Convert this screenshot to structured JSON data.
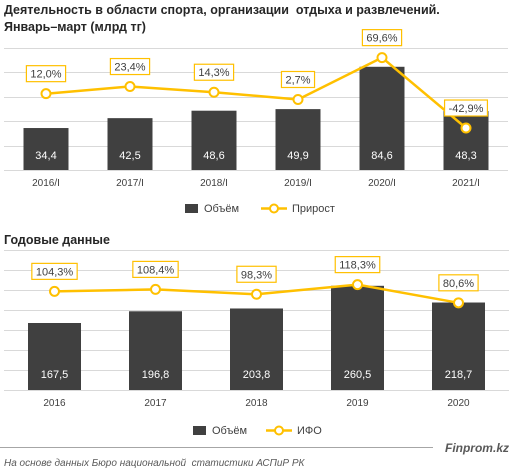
{
  "title": "Деятельность в области спорта, организации  отдыха и развлечений.",
  "colors": {
    "grid": "#D9D9D9"
  },
  "chart_data": [
    {
      "type": "bar",
      "title": "Январь–март (млрд тг)",
      "categories": [
        "2016/I",
        "2017/I",
        "2018/I",
        "2019/I",
        "2020/I",
        "2021/I"
      ],
      "series": [
        {
          "name": "Объём",
          "type": "bar",
          "values": [
            34.4,
            42.5,
            48.6,
            49.9,
            84.6,
            48.3
          ],
          "data_labels": [
            "34,4",
            "42,5",
            "48,6",
            "49,9",
            "84,6",
            "48,3"
          ],
          "color": "#404040"
        },
        {
          "name": "Прирост",
          "type": "line",
          "axis": "secondary",
          "values": [
            12.0,
            23.4,
            14.3,
            2.7,
            69.6,
            -42.9
          ],
          "data_labels": [
            "12,0%",
            "23,4%",
            "14,3%",
            "2,7%",
            "69,6%",
            "-42,9%"
          ],
          "color": "#FFC000"
        }
      ],
      "ylim": [
        0,
        100
      ],
      "y2lim": [
        -110,
        85
      ],
      "grid": true,
      "legend": "bottom"
    },
    {
      "type": "bar",
      "title": "Годовые данные",
      "categories": [
        "2016",
        "2017",
        "2018",
        "2019",
        "2020"
      ],
      "series": [
        {
          "name": "Объём",
          "type": "bar",
          "values": [
            167.5,
            196.8,
            203.8,
            260.5,
            218.7
          ],
          "data_labels": [
            "167,5",
            "196,8",
            "203,8",
            "260,5",
            "218,7"
          ],
          "color": "#404040"
        },
        {
          "name": "ИФО",
          "type": "line",
          "axis": "secondary",
          "values": [
            104.3,
            108.4,
            98.3,
            118.3,
            80.6
          ],
          "data_labels": [
            "104,3%",
            "108,4%",
            "98,3%",
            "118,3%",
            "80,6%"
          ],
          "color": "#FFC000"
        }
      ],
      "ylim": [
        0,
        350
      ],
      "y2lim": [
        -100,
        190
      ],
      "grid": true,
      "legend": "bottom"
    }
  ],
  "footer": {
    "brand": "Finprom.kz",
    "source": "На основе данных Бюро национальной  статистики АСПиР РК"
  }
}
